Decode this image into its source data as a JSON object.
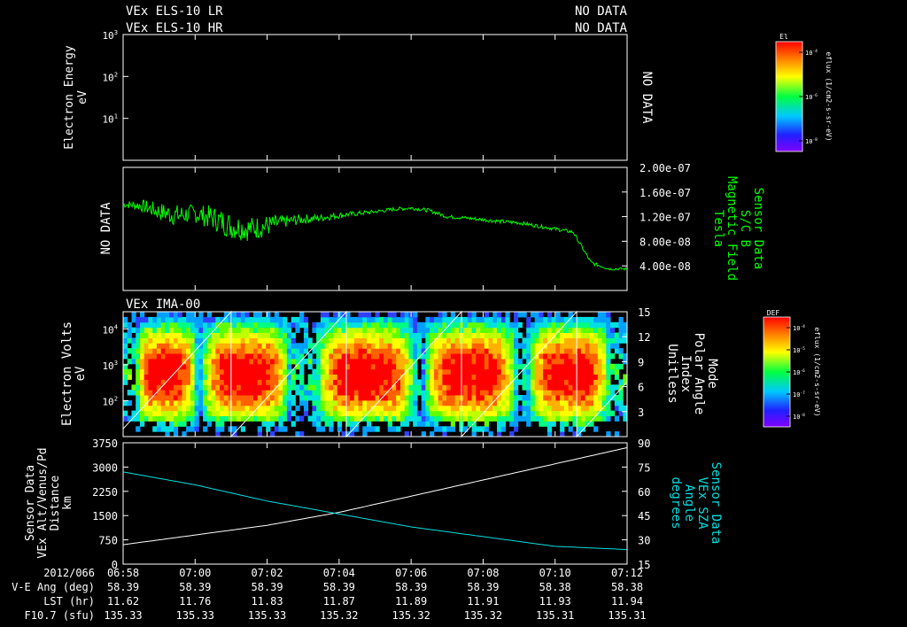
{
  "headers": {
    "lr_label": "VEx ELS-10 LR",
    "lr_status": "NO DATA",
    "hr_label": "VEx ELS-10 HR",
    "hr_status": "NO DATA"
  },
  "colors": {
    "background": "#000000",
    "foreground": "#ffffff",
    "bfield": "#00ff00",
    "sza": "#00e0e0",
    "alt": "#ffffff"
  },
  "chart_data": [
    {
      "id": "electron-energy",
      "type": "heatmap",
      "title": "Electron Energy",
      "ylabel": [
        "Electron Energy",
        "eV"
      ],
      "yscale": "log",
      "ylim": [
        1,
        1000
      ],
      "yticks": [
        {
          "value": 1000,
          "label": "10",
          "exp": "3"
        },
        {
          "value": 100,
          "label": "10",
          "exp": "2"
        },
        {
          "value": 10,
          "label": "10",
          "exp": "1"
        }
      ],
      "right_label": "NO DATA",
      "colorbar": {
        "title": "El",
        "units": "eflux (1/cm2-s-sr-eV)",
        "ticks": [
          {
            "label": "10",
            "exp": "-4"
          },
          {
            "label": "10",
            "exp": "-6"
          },
          {
            "label": "10",
            "exp": "-8"
          }
        ]
      }
    },
    {
      "id": "magnetic-field",
      "type": "line",
      "left_label": "NO DATA",
      "ylabel": [
        "Sensor Data",
        "S/C B",
        "Magnetic Field",
        "Tesla"
      ],
      "ylim": [
        0,
        2e-07
      ],
      "yticks": [
        "2.00e-07",
        "1.60e-07",
        "1.20e-07",
        "8.00e-08",
        "4.00e-08"
      ],
      "ytick_values": [
        2e-07,
        1.6e-07,
        1.2e-07,
        8e-08,
        4e-08
      ],
      "x": [
        0,
        0.5,
        1,
        1.5,
        2,
        2.5,
        3,
        3.5,
        4,
        4.5,
        5,
        5.5,
        6,
        6.5,
        7,
        7.5,
        8,
        8.5,
        9,
        9.5,
        10,
        10.5,
        11,
        11.5,
        12,
        12.5,
        13,
        13.5,
        14
      ],
      "values": [
        1.4e-07,
        1.38e-07,
        1.28e-07,
        1.22e-07,
        1.25e-07,
        1.18e-07,
        1.05e-07,
        1e-07,
        1.05e-07,
        1.12e-07,
        1.16e-07,
        1.18e-07,
        1.22e-07,
        1.25e-07,
        1.28e-07,
        1.32e-07,
        1.34e-07,
        1.3e-07,
        1.2e-07,
        1.18e-07,
        1.15e-07,
        1.12e-07,
        1.1e-07,
        1.05e-07,
        1e-07,
        9.5e-08,
        4.5e-08,
        3.5e-08,
        3.5e-08
      ],
      "noise": [
        5e-09,
        1e-08,
        1.5e-08,
        1.8e-08,
        1.5e-08,
        2e-08,
        2.2e-08,
        2e-08,
        1.8e-08,
        1e-08,
        8e-09,
        6e-09,
        5e-09,
        4e-09,
        3e-09,
        3e-09,
        3e-09,
        3e-09,
        3e-09,
        3e-09,
        3e-09,
        3e-09,
        3e-09,
        3e-09,
        3e-09,
        3e-09,
        3e-09,
        2e-09,
        2e-09
      ]
    },
    {
      "id": "ima-spectrogram",
      "type": "heatmap",
      "title": "VEx IMA-00",
      "ylabel": [
        "Electron Volts",
        "eV"
      ],
      "yscale": "log",
      "ylim": [
        10,
        30000
      ],
      "yticks": [
        {
          "value": 10000,
          "label": "10",
          "exp": "4"
        },
        {
          "value": 1000,
          "label": "10",
          "exp": "3"
        },
        {
          "value": 100,
          "label": "10",
          "exp": "2"
        }
      ],
      "right_axis": {
        "label": [
          "Mode",
          "Polar Angle",
          "Index",
          "Unitless"
        ],
        "ylim": [
          0,
          15
        ],
        "ticks": [
          "15",
          "12",
          "9",
          "6",
          "3"
        ],
        "tick_values": [
          15,
          12,
          9,
          6,
          3
        ]
      },
      "sweep_cycle_minutes": 3.2,
      "sweep_start_minutes": -0.2,
      "colorbar": {
        "title": "DEF",
        "units": "eflux (1/cm2-s-sr-eV)",
        "ticks": [
          {
            "label": "10",
            "exp": "-4"
          },
          {
            "label": "10",
            "exp": "-5"
          },
          {
            "label": "10",
            "exp": "-6"
          },
          {
            "label": "10",
            "exp": "-7"
          },
          {
            "label": "10",
            "exp": "-8"
          }
        ]
      }
    },
    {
      "id": "alt-sza",
      "type": "line",
      "left_ylabel": [
        "Sensor Data",
        "VEx Alt/Venus/Pd",
        "Distance",
        "km"
      ],
      "right_ylabel": [
        "Sensor Data",
        "VEx SZA",
        "Angle",
        "degrees"
      ],
      "left_ylim": [
        0,
        3750
      ],
      "left_ticks": [
        "3750",
        "3000",
        "2250",
        "1500",
        "750",
        "0"
      ],
      "left_tick_values": [
        3750,
        3000,
        2250,
        1500,
        750,
        0
      ],
      "right_ylim": [
        15,
        90
      ],
      "right_ticks": [
        "90",
        "75",
        "60",
        "45",
        "30",
        "15"
      ],
      "right_tick_values": [
        90,
        75,
        60,
        45,
        30,
        15
      ],
      "series": [
        {
          "name": "Altitude",
          "axis": "left",
          "x": [
            0,
            2,
            4,
            6,
            8,
            10,
            12,
            14
          ],
          "values": [
            600,
            900,
            1200,
            1600,
            2100,
            2600,
            3100,
            3600
          ]
        },
        {
          "name": "SZA",
          "axis": "right",
          "x": [
            0,
            2,
            4,
            6,
            8,
            10,
            12,
            14
          ],
          "values": [
            72,
            64,
            54,
            46,
            38,
            32,
            26,
            24
          ]
        }
      ]
    }
  ],
  "time_axis": {
    "date": "2012/066",
    "ticks": [
      "06:58",
      "07:00",
      "07:02",
      "07:04",
      "07:06",
      "07:08",
      "07:10",
      "07:12"
    ],
    "tick_minutes": [
      0,
      2,
      4,
      6,
      8,
      10,
      12,
      14
    ],
    "span_minutes": 14
  },
  "ephemeris": {
    "rows": [
      {
        "label": "V-E Ang (deg)",
        "values": [
          "58.39",
          "58.39",
          "58.39",
          "58.39",
          "58.39",
          "58.39",
          "58.38",
          "58.38"
        ]
      },
      {
        "label": "LST (hr)",
        "values": [
          "11.62",
          "11.76",
          "11.83",
          "11.87",
          "11.89",
          "11.91",
          "11.93",
          "11.94"
        ]
      },
      {
        "label": "F10.7 (sfu)",
        "values": [
          "135.33",
          "135.33",
          "135.33",
          "135.32",
          "135.32",
          "135.32",
          "135.31",
          "135.31"
        ]
      }
    ]
  }
}
